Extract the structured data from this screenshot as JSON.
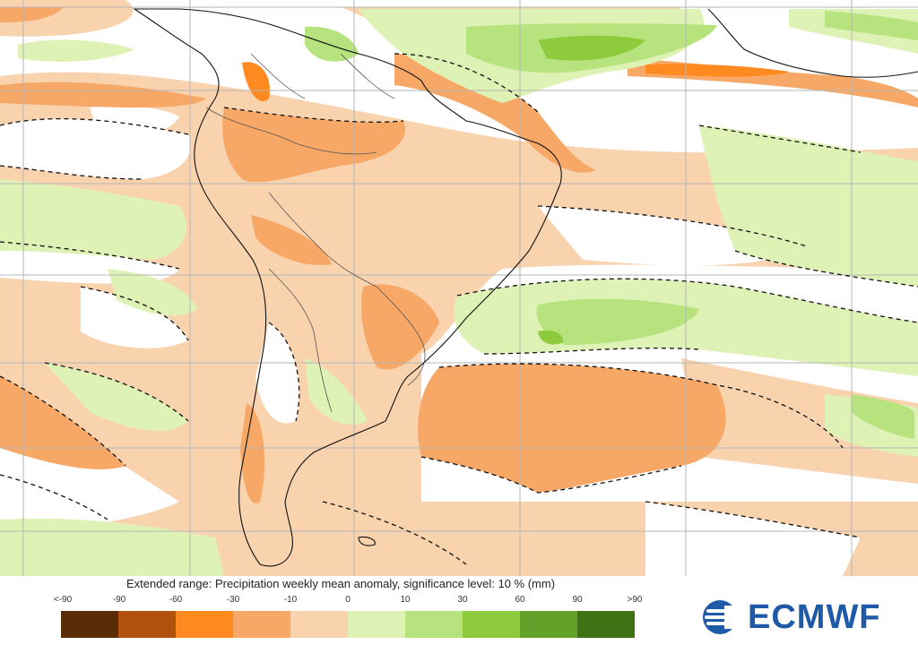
{
  "caption": "Extended range: Precipitation weekly mean anomaly, significance level: 10 % (mm)",
  "legend": {
    "ticks": [
      "<-90",
      "-90",
      "-60",
      "-30",
      "-10",
      "0",
      "10",
      "30",
      "60",
      "90",
      ">90"
    ],
    "colors": [
      "#5a2d06",
      "#b0520e",
      "#ff8a1f",
      "#f7a867",
      "#f9d2ae",
      "#dff2b5",
      "#b7e37e",
      "#8ecb3c",
      "#62a22a",
      "#3f7115"
    ]
  },
  "logo": {
    "text": "ECMWF",
    "color": "#1f5aa8"
  },
  "map": {
    "ocean_color": "#ffffff",
    "grid_color": "#b5b5b5",
    "coast_color": "#111111",
    "contour_style": "dashed"
  }
}
